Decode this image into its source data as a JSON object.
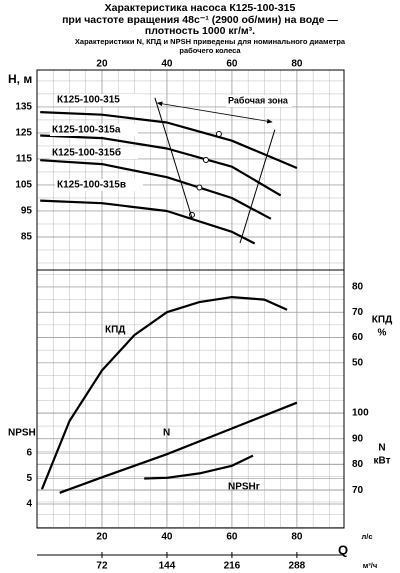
{
  "chart_data": [
    {
      "type": "line",
      "title": [
        "Характеристика насоса К125-100-315",
        "при частоте вращения 48с⁻¹ (2900 об/мин) на воде —",
        "плотность 1000 кг/м³.",
        "Характеристики N, КПД и NPSH приведены для номинального диаметра",
        "рабочего колеса"
      ],
      "ylabel": "H, м",
      "xlim": [
        0,
        94.5
      ],
      "xticks": [
        20,
        40,
        60,
        80
      ],
      "ylim": [
        72.3,
        149.2
      ],
      "yticks": [
        85,
        95,
        105,
        115,
        125,
        135
      ],
      "grid": true,
      "series": [
        {
          "name": "К125-100-315",
          "color": "#000000",
          "x": [
            1,
            20,
            40,
            60,
            80
          ],
          "values": [
            133,
            132,
            129,
            122,
            111.5
          ],
          "marker": {
            "x": 56,
            "value": 124.6
          }
        },
        {
          "name": "К125-100-315а",
          "color": "#000000",
          "x": [
            1,
            20,
            40,
            60,
            75
          ],
          "values": [
            124,
            123,
            119,
            112,
            101
          ],
          "marker": {
            "x": 52,
            "value": 114.6
          }
        },
        {
          "name": "К125-100-315б",
          "color": "#000000",
          "x": [
            1,
            20,
            40,
            60,
            72
          ],
          "values": [
            114.5,
            113,
            108,
            100,
            92
          ],
          "marker": {
            "x": 50,
            "value": 104
          }
        },
        {
          "name": "К125-100-315в",
          "color": "#000000",
          "x": [
            1,
            20,
            40,
            60,
            67
          ],
          "values": [
            99,
            98,
            95,
            87,
            82.5
          ],
          "marker": {
            "x": 47.7,
            "value": 93.5
          }
        }
      ],
      "zone": {
        "label": "Рабочая зона",
        "left": {
          "x": [
            36.3,
            47.7
          ],
          "values": [
            138.5,
            92.3
          ]
        },
        "right": {
          "x": [
            73.2,
            62.5
          ],
          "values": [
            126.2,
            82.7
          ]
        },
        "arrow": {
          "x": [
            37.1,
            72.3
          ],
          "values": [
            136.5,
            129.2
          ]
        }
      }
    },
    {
      "type": "line",
      "xlabel": "Q",
      "xunit": "л/с",
      "x2unit": "м³/ч",
      "xlim": [
        0,
        94.5
      ],
      "xticks": [
        20,
        40,
        60,
        80
      ],
      "x2lim": [
        0,
        340.2
      ],
      "x2ticks": [
        72,
        144,
        216,
        288
      ],
      "ylabel": "NPSH",
      "ylim": [
        3.06,
        13.18
      ],
      "yticks": [
        4,
        5,
        6
      ],
      "y2label": "КПД",
      "y2unit": "%",
      "y2lim": [
        -15.3,
        86.7
      ],
      "y2ticks": [
        50,
        60,
        70,
        80
      ],
      "y3label": "N",
      "y3unit": "кВт",
      "y3lim": [
        55.3,
        155.6
      ],
      "y3ticks": [
        70,
        80,
        90,
        100
      ],
      "series": [
        {
          "name": "КПД",
          "axis": "y2",
          "color": "#000000",
          "x": [
            1.5,
            10,
            20,
            30,
            40,
            50,
            60,
            70,
            77
          ],
          "values": [
            0,
            27,
            47,
            61,
            70,
            74,
            76,
            75,
            71
          ]
        },
        {
          "name": "N",
          "axis": "y3",
          "color": "#000000",
          "x": [
            7,
            20,
            40,
            60,
            80
          ],
          "values": [
            69,
            75,
            84,
            94,
            104
          ]
        },
        {
          "name": "NPSHr",
          "axis": "y",
          "color": "#000000",
          "x": [
            33,
            40,
            50,
            60,
            66.5
          ],
          "values": [
            5.0,
            5.03,
            5.2,
            5.5,
            5.9
          ]
        }
      ]
    }
  ]
}
